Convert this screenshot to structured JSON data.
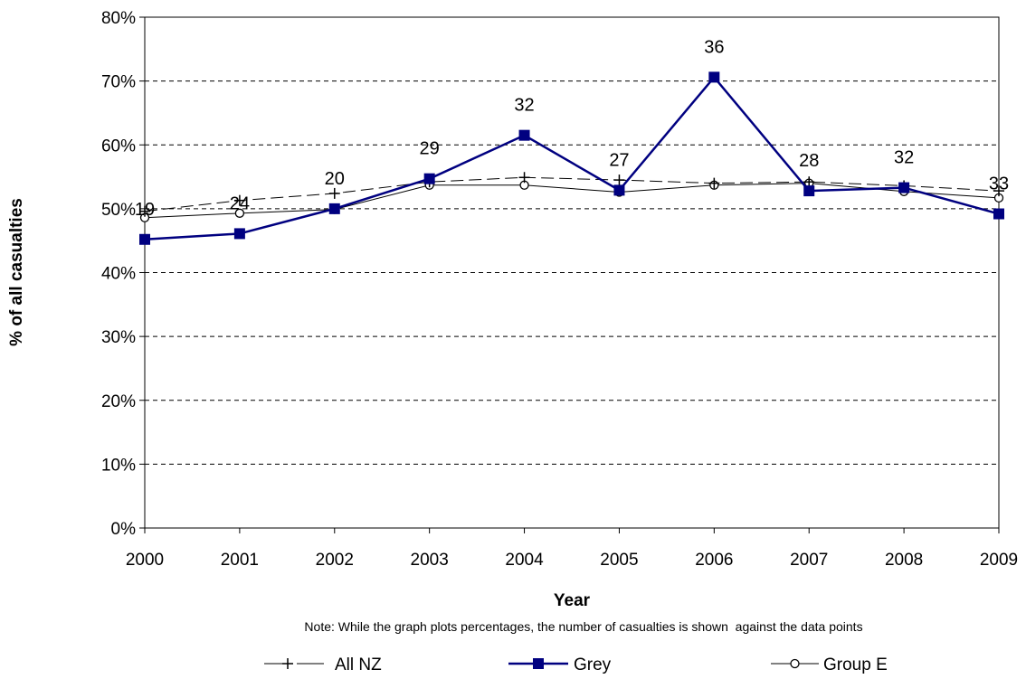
{
  "chart_data": {
    "type": "line",
    "x": [
      "2000",
      "2001",
      "2002",
      "2003",
      "2004",
      "2005",
      "2006",
      "2007",
      "2008",
      "2009"
    ],
    "ylabel": "% of all casualties",
    "xlabel": "Year",
    "note": "Note: While the graph plots percentages, the number of casualties is shown  against the data points",
    "ylim": [
      0,
      80
    ],
    "y_ticks": [
      "0%",
      "10%",
      "20%",
      "30%",
      "40%",
      "50%",
      "60%",
      "70%",
      "80%"
    ],
    "grid": "horizontal dashed",
    "legend_position": "bottom",
    "series": [
      {
        "name": "All NZ",
        "values": [
          49.6,
          51.3,
          52.4,
          54.2,
          54.9,
          54.5,
          54.0,
          54.2,
          53.6,
          52.8
        ],
        "color": "#000000",
        "marker": "plus",
        "line": "dashed"
      },
      {
        "name": "Grey",
        "values": [
          45.2,
          46.1,
          50.0,
          54.7,
          61.5,
          52.9,
          70.6,
          52.8,
          53.3,
          49.2
        ],
        "color": "#000080",
        "marker": "square",
        "line": "solid",
        "data_labels": [
          "19",
          "24",
          "20",
          "29",
          "32",
          "27",
          "36",
          "28",
          "32",
          "33"
        ]
      },
      {
        "name": "Group E",
        "values": [
          48.6,
          49.3,
          49.9,
          53.7,
          53.7,
          52.6,
          53.7,
          54.0,
          52.7,
          51.7
        ],
        "color": "#000000",
        "marker": "circle",
        "line": "solid"
      }
    ]
  }
}
